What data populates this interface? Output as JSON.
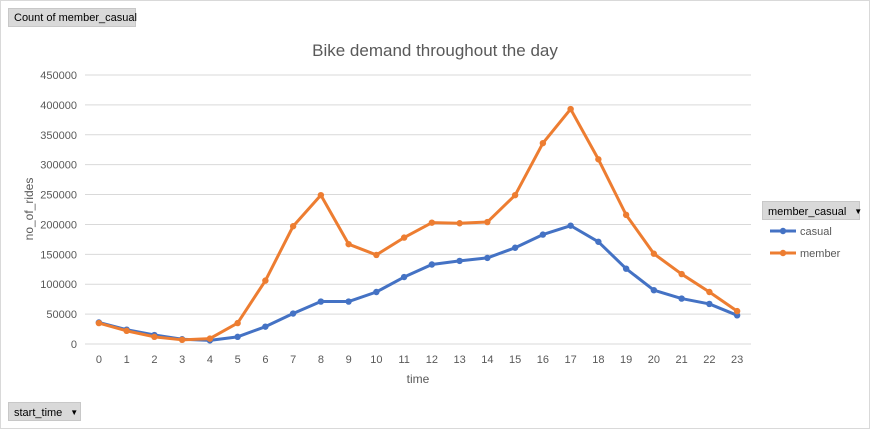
{
  "pivot": {
    "value_field": "Count of member_casual",
    "axis_field": "start_time",
    "legend_field": "member_casual"
  },
  "colors": {
    "casual": "#4472c4",
    "member": "#ed7d31",
    "gridline": "#d9d9d9",
    "axis_text": "#595959",
    "title_text": "#595959"
  },
  "chart_data": {
    "type": "line",
    "title": "Bike demand throughout the day",
    "xlabel": "time",
    "ylabel": "no_of_rides",
    "categories": [
      "0",
      "1",
      "2",
      "3",
      "4",
      "5",
      "6",
      "7",
      "8",
      "9",
      "10",
      "11",
      "12",
      "13",
      "14",
      "15",
      "16",
      "17",
      "18",
      "19",
      "20",
      "21",
      "22",
      "23"
    ],
    "ylim": [
      0,
      450000
    ],
    "yticks": [
      0,
      50000,
      100000,
      150000,
      200000,
      250000,
      300000,
      350000,
      400000,
      450000
    ],
    "grid": true,
    "legend_position": "right",
    "series": [
      {
        "name": "casual",
        "color_key": "casual",
        "values": [
          36000,
          24000,
          15000,
          8000,
          6000,
          12000,
          29000,
          51000,
          71000,
          71000,
          87000,
          112000,
          133000,
          139000,
          144000,
          161000,
          183000,
          198000,
          171000,
          126000,
          90000,
          76000,
          67000,
          48000
        ]
      },
      {
        "name": "member",
        "color_key": "member",
        "values": [
          35000,
          22000,
          12000,
          7000,
          9000,
          35000,
          106000,
          197000,
          249000,
          167000,
          149000,
          178000,
          203000,
          202000,
          204000,
          249000,
          336000,
          393000,
          309000,
          216000,
          151000,
          117000,
          87000,
          55000
        ]
      }
    ]
  }
}
